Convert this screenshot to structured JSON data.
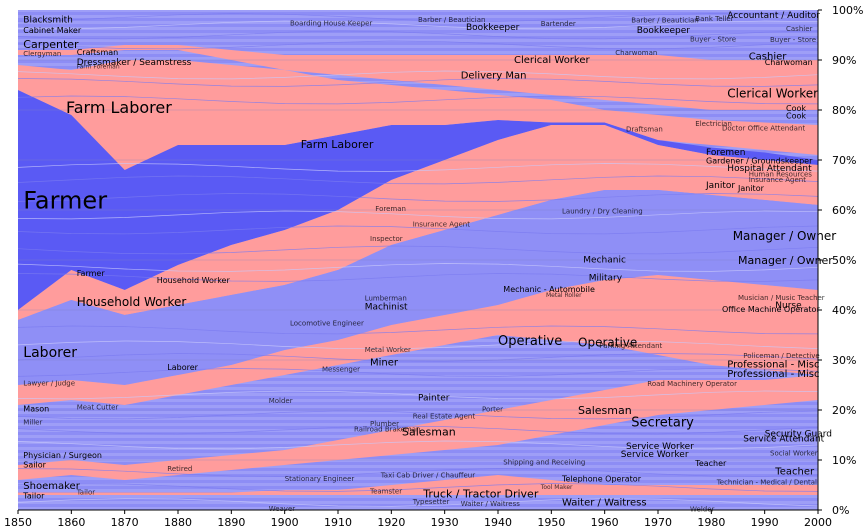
{
  "chart_data": {
    "type": "area",
    "stacked": true,
    "normalized": true,
    "x": [
      1850,
      1860,
      1870,
      1880,
      1890,
      1900,
      1910,
      1920,
      1930,
      1940,
      1950,
      1960,
      1970,
      1980,
      1990,
      2000
    ],
    "xlim": [
      1850,
      2000
    ],
    "ylim": [
      0,
      100
    ],
    "x_ticks": [
      "1850",
      "1860",
      "1870",
      "1880",
      "1890",
      "1900",
      "1910",
      "1920",
      "1930",
      "1940",
      "1950",
      "1960",
      "1970",
      "1980",
      "1990",
      "2000"
    ],
    "y_ticks": [
      "0%",
      "10%",
      "20%",
      "30%",
      "40%",
      "50%",
      "60%",
      "70%",
      "80%",
      "90%",
      "100%"
    ],
    "grid": true,
    "colors": {
      "blue_dark": "#5a5af4",
      "blue": "#8f8ff6",
      "blue_light": "#b3b3f8",
      "pink": "#ff9c9c"
    },
    "series": [
      {
        "name": "Farmer",
        "color": "#5a5af4",
        "lower": [
          40,
          48,
          44,
          49,
          53,
          56,
          60,
          66,
          70,
          74,
          77,
          77,
          73,
          71,
          70,
          69
        ],
        "upper": [
          84,
          79,
          71,
          73,
          73,
          73,
          75,
          77,
          77,
          78,
          77.5,
          77.5,
          74,
          72.5,
          71.5,
          70
        ]
      },
      {
        "name": "Farm Laborer",
        "color": "#ff9c9c",
        "lower": [
          84,
          79,
          68,
          73,
          73,
          73,
          75,
          77,
          77,
          78,
          77.5,
          77.5,
          74,
          73,
          72,
          71
        ],
        "upper": [
          89,
          88,
          90,
          90,
          89,
          88,
          86,
          85,
          84,
          83,
          82,
          80,
          79,
          78,
          77.5,
          77
        ]
      },
      {
        "name": "Household Worker",
        "color": "#ff9c9c",
        "lower": [
          38,
          42,
          39,
          41,
          43,
          45,
          48,
          53,
          56,
          59,
          62,
          64,
          64,
          63,
          62,
          61
        ],
        "upper": [
          40,
          48,
          44,
          49,
          53,
          56,
          60,
          66,
          70,
          74,
          77,
          77,
          73,
          71,
          70,
          69
        ]
      },
      {
        "name": "Laborer",
        "color": "#8f8ff6",
        "lower": [
          25,
          26,
          25,
          27,
          29,
          32,
          34,
          37,
          39,
          41,
          44,
          46,
          47,
          46,
          45,
          44
        ],
        "upper": [
          38,
          42,
          39,
          41,
          43,
          45,
          48,
          53,
          56,
          59,
          62,
          64,
          64,
          63,
          62,
          61
        ]
      },
      {
        "name": "Operative",
        "color": "#ff9c9c",
        "lower": [
          21,
          22,
          21,
          23,
          25,
          27,
          29,
          31,
          33,
          35,
          34,
          33,
          31,
          29,
          28,
          27
        ],
        "upper": [
          25,
          26,
          25,
          27,
          29,
          32,
          34,
          37,
          39,
          41,
          44,
          46,
          47,
          46,
          45,
          44
        ]
      },
      {
        "name": "Salesman",
        "color": "#ff9c9c",
        "lower": [
          6,
          7,
          6,
          7,
          8,
          9,
          10,
          11,
          12,
          13,
          15,
          17,
          19,
          20,
          21,
          22
        ],
        "upper": [
          9,
          10,
          9,
          10,
          11,
          12,
          14,
          16,
          18,
          20,
          22,
          24,
          26,
          26,
          26,
          27
        ]
      },
      {
        "name": "Clerical Worker",
        "color": "#ff9c9c",
        "lower": [
          91,
          91,
          92,
          92,
          90,
          88,
          87,
          86,
          85,
          84,
          83,
          82,
          81,
          80,
          80,
          80
        ],
        "upper": [
          92,
          92,
          93,
          93,
          92,
          91,
          91,
          91,
          91,
          91,
          91,
          91,
          91,
          90,
          90,
          90
        ]
      },
      {
        "name": "Manager / Owner",
        "color": "#b3b3f8",
        "lower": [
          64,
          60,
          59,
          60,
          61,
          62,
          63,
          64,
          64,
          64,
          63,
          62,
          62,
          62,
          62,
          61
        ],
        "upper": [
          64,
          60,
          59,
          60,
          61,
          62,
          63,
          64,
          64,
          64,
          63,
          62,
          62,
          62,
          62,
          61
        ]
      },
      {
        "name": "Truck / Tractor Driver",
        "color": "#ff9c9c",
        "lower": [
          3,
          3,
          3,
          3,
          3,
          3,
          3,
          3,
          3,
          3,
          3,
          3,
          3,
          3,
          3,
          3
        ],
        "upper": [
          3.5,
          3.5,
          3.5,
          3.5,
          3.5,
          4,
          4,
          5,
          6,
          7,
          6,
          5,
          5,
          5,
          5,
          5
        ]
      }
    ],
    "labels": [
      {
        "text": "Farmer",
        "x": 1851,
        "y": 62,
        "size": 24
      },
      {
        "text": "Farm Laborer",
        "x": 1859,
        "y": 80.5,
        "size": 16
      },
      {
        "text": "Farm Laborer",
        "x": 1903,
        "y": 73.2,
        "size": 11
      },
      {
        "text": "Household Worker",
        "x": 1861,
        "y": 41.6,
        "size": 12
      },
      {
        "text": "Household Worker",
        "x": 1876,
        "y": 46,
        "size": 8
      },
      {
        "text": "Laborer",
        "x": 1851,
        "y": 31.6,
        "size": 14
      },
      {
        "text": "Laborer",
        "x": 1878,
        "y": 28.6,
        "size": 8
      },
      {
        "text": "Farmer",
        "x": 1861,
        "y": 47.4,
        "size": 8
      },
      {
        "text": "Carpenter",
        "x": 1851,
        "y": 93.2,
        "size": 11
      },
      {
        "text": "Blacksmith",
        "x": 1851,
        "y": 98.1,
        "size": 9
      },
      {
        "text": "Cabinet Maker",
        "x": 1851,
        "y": 96,
        "size": 8
      },
      {
        "text": "Clergyman",
        "x": 1851,
        "y": 91.3,
        "size": 7
      },
      {
        "text": "Craftsman",
        "x": 1861,
        "y": 91.6,
        "size": 8
      },
      {
        "text": "Dressmaker / Seamstress",
        "x": 1861,
        "y": 89.6,
        "size": 9
      },
      {
        "text": "Farm Foreman",
        "x": 1861,
        "y": 88.7,
        "size": 6
      },
      {
        "text": "Mason",
        "x": 1851,
        "y": 20.3,
        "size": 8
      },
      {
        "text": "Miller",
        "x": 1851,
        "y": 17.6,
        "size": 7
      },
      {
        "text": "Meat Cutter",
        "x": 1861,
        "y": 20.6,
        "size": 7
      },
      {
        "text": "Lawyer / Judge",
        "x": 1851,
        "y": 25.4,
        "size": 7
      },
      {
        "text": "Physician / Surgeon",
        "x": 1851,
        "y": 11,
        "size": 8
      },
      {
        "text": "Sailor",
        "x": 1851,
        "y": 9.1,
        "size": 8
      },
      {
        "text": "Shoemaker",
        "x": 1851,
        "y": 4.9,
        "size": 10
      },
      {
        "text": "Tailor",
        "x": 1851,
        "y": 2.9,
        "size": 8
      },
      {
        "text": "Tailor",
        "x": 1861,
        "y": 3.6,
        "size": 7
      },
      {
        "text": "Retired",
        "x": 1878,
        "y": 8.3,
        "size": 7
      },
      {
        "text": "Weaver",
        "x": 1897,
        "y": 0.3,
        "size": 7
      },
      {
        "text": "Boarding House Keeper",
        "x": 1901,
        "y": 97.4,
        "size": 7
      },
      {
        "text": "Barber / Beautician",
        "x": 1925,
        "y": 98.1,
        "size": 7
      },
      {
        "text": "Bookkeeper",
        "x": 1934,
        "y": 96.6,
        "size": 9
      },
      {
        "text": "Bartender",
        "x": 1948,
        "y": 97.3,
        "size": 7
      },
      {
        "text": "Delivery Man",
        "x": 1933,
        "y": 87,
        "size": 10
      },
      {
        "text": "Clerical Worker",
        "x": 1943,
        "y": 90.1,
        "size": 10
      },
      {
        "text": "Foreman",
        "x": 1917,
        "y": 60.3,
        "size": 7
      },
      {
        "text": "Insurance Agent",
        "x": 1924,
        "y": 57.2,
        "size": 7
      },
      {
        "text": "Inspector",
        "x": 1916,
        "y": 54.3,
        "size": 7
      },
      {
        "text": "Locomotive Engineer",
        "x": 1901,
        "y": 37.4,
        "size": 7
      },
      {
        "text": "Machinist",
        "x": 1915,
        "y": 40.7,
        "size": 9
      },
      {
        "text": "Lumberman",
        "x": 1915,
        "y": 42.4,
        "size": 7
      },
      {
        "text": "Metal Worker",
        "x": 1915,
        "y": 32.1,
        "size": 7
      },
      {
        "text": "Miner",
        "x": 1916,
        "y": 29.6,
        "size": 10
      },
      {
        "text": "Messenger",
        "x": 1907,
        "y": 28.2,
        "size": 7
      },
      {
        "text": "Molder",
        "x": 1897,
        "y": 21.9,
        "size": 7
      },
      {
        "text": "Painter",
        "x": 1925,
        "y": 22.5,
        "size": 9
      },
      {
        "text": "Plumber",
        "x": 1916,
        "y": 17.3,
        "size": 7
      },
      {
        "text": "Railroad Brakeman",
        "x": 1913,
        "y": 16.2,
        "size": 7
      },
      {
        "text": "Real Estate Agent",
        "x": 1924,
        "y": 18.8,
        "size": 7
      },
      {
        "text": "Porter",
        "x": 1937,
        "y": 20.2,
        "size": 7
      },
      {
        "text": "Salesman",
        "x": 1922,
        "y": 15.7,
        "size": 11
      },
      {
        "text": "Stationary Engineer",
        "x": 1900,
        "y": 6.3,
        "size": 7
      },
      {
        "text": "Teamster",
        "x": 1916,
        "y": 3.8,
        "size": 7
      },
      {
        "text": "Taxi Cab Driver / Chauffeur",
        "x": 1918,
        "y": 7,
        "size": 7
      },
      {
        "text": "Typesetter",
        "x": 1924,
        "y": 1.7,
        "size": 7
      },
      {
        "text": "Truck / Tractor Driver",
        "x": 1926,
        "y": 3.3,
        "size": 11
      },
      {
        "text": "Waiter / Waitress",
        "x": 1933,
        "y": 1.3,
        "size": 7
      },
      {
        "text": "Shipping and Receiving",
        "x": 1941,
        "y": 9.6,
        "size": 7
      },
      {
        "text": "Tool Maker",
        "x": 1948,
        "y": 4.6,
        "size": 6
      },
      {
        "text": "Telephone Operator",
        "x": 1952,
        "y": 6.3,
        "size": 8
      },
      {
        "text": "Waiter / Waitress",
        "x": 1952,
        "y": 1.6,
        "size": 10
      },
      {
        "text": "Laundry / Dry Cleaning",
        "x": 1952,
        "y": 59.8,
        "size": 7
      },
      {
        "text": "Mechanic - Automobile",
        "x": 1941,
        "y": 44.2,
        "size": 8
      },
      {
        "text": "Metal Roller",
        "x": 1949,
        "y": 43,
        "size": 6
      },
      {
        "text": "Mechanic",
        "x": 1956,
        "y": 50.1,
        "size": 9
      },
      {
        "text": "Military",
        "x": 1957,
        "y": 46.5,
        "size": 9
      },
      {
        "text": "Operative",
        "x": 1940,
        "y": 33.9,
        "size": 13
      },
      {
        "text": "Operative",
        "x": 1955,
        "y": 33.5,
        "size": 12
      },
      {
        "text": "Parking Attendant",
        "x": 1959,
        "y": 32.9,
        "size": 7
      },
      {
        "text": "Salesman",
        "x": 1955,
        "y": 20,
        "size": 11
      },
      {
        "text": "Secretary",
        "x": 1965,
        "y": 17.6,
        "size": 13
      },
      {
        "text": "Service Worker",
        "x": 1964,
        "y": 12.8,
        "size": 9
      },
      {
        "text": "Service Worker",
        "x": 1963,
        "y": 11.2,
        "size": 9
      },
      {
        "text": "Teacher",
        "x": 1977,
        "y": 9.4,
        "size": 8
      },
      {
        "text": "Welder",
        "x": 1976,
        "y": 0.2,
        "size": 7
      },
      {
        "text": "Barber / Beautician",
        "x": 1965,
        "y": 98,
        "size": 7
      },
      {
        "text": "Bookkeeper",
        "x": 1966,
        "y": 96,
        "size": 9
      },
      {
        "text": "Bank Teller",
        "x": 1977,
        "y": 98.3,
        "size": 7
      },
      {
        "text": "Buyer - Store",
        "x": 1976,
        "y": 94.2,
        "size": 7
      },
      {
        "text": "Charwoman",
        "x": 1962,
        "y": 91.5,
        "size": 7
      },
      {
        "text": "Draftsman",
        "x": 1964,
        "y": 76.2,
        "size": 7
      },
      {
        "text": "Electrician",
        "x": 1977,
        "y": 77.3,
        "size": 7
      },
      {
        "text": "Foremen",
        "x": 1979,
        "y": 71.6,
        "size": 9
      },
      {
        "text": "Gardener / Groundskeeper",
        "x": 1979,
        "y": 69.9,
        "size": 8
      },
      {
        "text": "Janitor",
        "x": 1979,
        "y": 65,
        "size": 9
      },
      {
        "text": "Manager / Owner",
        "x": 1984,
        "y": 54.8,
        "size": 12
      },
      {
        "text": "Manager / Owner",
        "x": 1985,
        "y": 50,
        "size": 11
      },
      {
        "text": "Office Machine Operator",
        "x": 1982,
        "y": 40.2,
        "size": 8
      },
      {
        "text": "Road Machinery Operator",
        "x": 1968,
        "y": 25.3,
        "size": 7
      },
      {
        "text": "Security Guard",
        "x": 1990,
        "y": 15.3,
        "size": 9
      },
      {
        "text": "Service Attendant",
        "x": 1986,
        "y": 14.3,
        "size": 9
      },
      {
        "text": "Professional - Misc",
        "x": 1983,
        "y": 29.2,
        "size": 10
      },
      {
        "text": "Professional - Misc",
        "x": 1983,
        "y": 27.3,
        "size": 10
      },
      {
        "text": "Policeman / Detective",
        "x": 1986,
        "y": 30.9,
        "size": 7
      },
      {
        "text": "Accountant / Auditor",
        "x": 1983,
        "y": 99,
        "size": 9
      },
      {
        "text": "Cashier",
        "x": 1987,
        "y": 90.8,
        "size": 10
      },
      {
        "text": "Charwoman",
        "x": 1990,
        "y": 89.6,
        "size": 8
      },
      {
        "text": "Clerical Worker",
        "x": 1983,
        "y": 83.3,
        "size": 12
      },
      {
        "text": "Cook",
        "x": 1994,
        "y": 80.4,
        "size": 8
      },
      {
        "text": "Cook",
        "x": 1994,
        "y": 78.9,
        "size": 8
      },
      {
        "text": "Doctor Office Attendant",
        "x": 1982,
        "y": 76.4,
        "size": 7
      },
      {
        "text": "Hospital Attendant",
        "x": 1983,
        "y": 68.4,
        "size": 9
      },
      {
        "text": "Human Resources",
        "x": 1987,
        "y": 67.2,
        "size": 7
      },
      {
        "text": "Insurance Agent",
        "x": 1987,
        "y": 66.1,
        "size": 7
      },
      {
        "text": "Janitor",
        "x": 1985,
        "y": 64.4,
        "size": 8
      },
      {
        "text": "Nurse",
        "x": 1992,
        "y": 41,
        "size": 9
      },
      {
        "text": "Musician / Music Teacher",
        "x": 1985,
        "y": 42.5,
        "size": 7
      },
      {
        "text": "Teacher",
        "x": 1992,
        "y": 7.8,
        "size": 10
      },
      {
        "text": "Social Worker",
        "x": 1991,
        "y": 11.4,
        "size": 7
      },
      {
        "text": "Technician - Medical / Dental",
        "x": 1981,
        "y": 5.6,
        "size": 7
      },
      {
        "text": "Cashier",
        "x": 1994,
        "y": 96.3,
        "size": 7
      },
      {
        "text": "Buyer - Store",
        "x": 1991,
        "y": 94.1,
        "size": 7
      }
    ]
  }
}
